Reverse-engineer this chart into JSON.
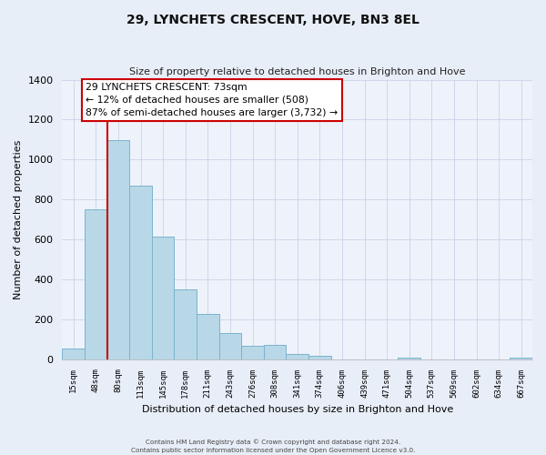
{
  "title": "29, LYNCHETS CRESCENT, HOVE, BN3 8EL",
  "subtitle": "Size of property relative to detached houses in Brighton and Hove",
  "xlabel": "Distribution of detached houses by size in Brighton and Hove",
  "ylabel": "Number of detached properties",
  "bar_labels": [
    "15sqm",
    "48sqm",
    "80sqm",
    "113sqm",
    "145sqm",
    "178sqm",
    "211sqm",
    "243sqm",
    "276sqm",
    "308sqm",
    "341sqm",
    "374sqm",
    "406sqm",
    "439sqm",
    "471sqm",
    "504sqm",
    "537sqm",
    "569sqm",
    "602sqm",
    "634sqm",
    "667sqm"
  ],
  "bar_values": [
    52,
    750,
    1095,
    868,
    615,
    348,
    228,
    130,
    65,
    70,
    25,
    18,
    0,
    0,
    0,
    10,
    0,
    0,
    0,
    0,
    10
  ],
  "bar_color": "#b8d8e8",
  "bar_edge_color": "#7ab4cc",
  "highlight_color": "#cc0000",
  "ylim": [
    0,
    1400
  ],
  "yticks": [
    0,
    200,
    400,
    600,
    800,
    1000,
    1200,
    1400
  ],
  "annotation_title": "29 LYNCHETS CRESCENT: 73sqm",
  "annotation_line1": "← 12% of detached houses are smaller (508)",
  "annotation_line2": "87% of semi-detached houses are larger (3,732) →",
  "footer_line1": "Contains HM Land Registry data © Crown copyright and database right 2024.",
  "footer_line2": "Contains public sector information licensed under the Open Government Licence v3.0.",
  "bg_color": "#e8eef8",
  "plot_bg_color": "#eef2fa",
  "grid_color": "#c8d4e8"
}
